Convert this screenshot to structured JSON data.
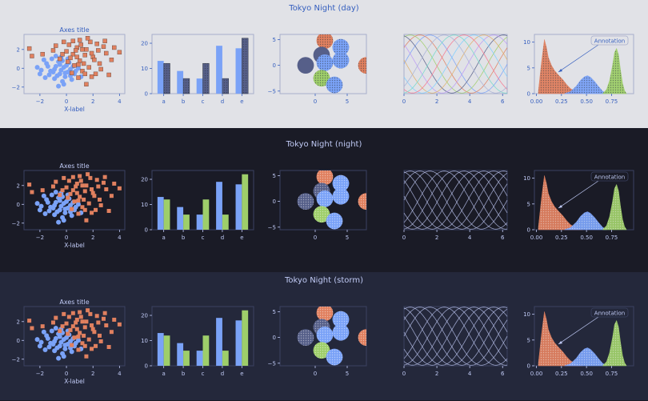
{
  "themes": [
    {
      "title": "Tokyo Night (day)",
      "bg": "#e1e2e7",
      "fg": "#3760bf",
      "border": "#a8aecb",
      "grid": "#c4c8da"
    },
    {
      "title": "Tokyo Night (night)",
      "bg": "#1a1b26",
      "fg": "#c0caf5",
      "border": "#3b4261",
      "grid": "#292e42"
    },
    {
      "title": "Tokyo Night (storm)",
      "bg": "#24283b",
      "fg": "#c0caf5",
      "border": "#3b4261",
      "grid": "#2f344d"
    }
  ],
  "colors": {
    "blue": "#7aa2f7",
    "orange": "#e0805f",
    "green": "#9ece6a",
    "gray": "#565f89",
    "day_hatch": "#2e3440"
  },
  "chart_data": [
    {
      "type": "scatter",
      "title": "Axes title",
      "xlabel": "X-label",
      "xticks": [
        "−2",
        "0",
        "2",
        "4"
      ],
      "yticks": [
        "2",
        "0",
        "−2"
      ],
      "xlim": [
        -3.2,
        4.4
      ],
      "ylim": [
        -2.7,
        3.6
      ],
      "series": [
        {
          "marker": "circle",
          "color": "blue",
          "points": [
            [
              -1.2,
              -0.3
            ],
            [
              -0.8,
              0.2
            ],
            [
              -0.5,
              -0.6
            ],
            [
              -0.2,
              0.1
            ],
            [
              0.1,
              -0.4
            ],
            [
              -1.5,
              0.5
            ],
            [
              -0.9,
              -1.1
            ],
            [
              -0.3,
              -1.4
            ],
            [
              0.3,
              -0.8
            ],
            [
              -0.6,
              0.7
            ],
            [
              -1.9,
              -0.2
            ],
            [
              0.5,
              0.2
            ],
            [
              -0.1,
              -0.9
            ],
            [
              -1.1,
              1.0
            ],
            [
              0.2,
              0.6
            ],
            [
              -0.4,
              -0.2
            ],
            [
              -0.7,
              -0.8
            ],
            [
              0.7,
              -0.3
            ],
            [
              -1.3,
              -0.7
            ],
            [
              0.0,
              0.3
            ],
            [
              -0.8,
              1.3
            ],
            [
              -2.2,
              0.1
            ],
            [
              0.4,
              -1.2
            ],
            [
              -0.2,
              -1.7
            ],
            [
              -1.6,
              -1.0
            ],
            [
              0.9,
              0.0
            ],
            [
              -0.5,
              0.4
            ],
            [
              -1.0,
              -0.4
            ],
            [
              0.1,
              1.0
            ],
            [
              -0.3,
              0.8
            ],
            [
              -1.7,
              0.9
            ],
            [
              0.6,
              -0.6
            ],
            [
              -0.9,
              -0.1
            ],
            [
              -0.1,
              -0.5
            ],
            [
              -1.4,
              0.2
            ],
            [
              0.3,
              -0.1
            ],
            [
              -0.6,
              -1.9
            ],
            [
              -2.0,
              -0.6
            ],
            [
              1.1,
              -0.9
            ],
            [
              -0.4,
              1.2
            ]
          ]
        },
        {
          "marker": "square",
          "color": "orange",
          "points": [
            [
              0.5,
              1.5
            ],
            [
              1.0,
              0.8
            ],
            [
              1.5,
              2.0
            ],
            [
              0.2,
              2.5
            ],
            [
              2.0,
              1.2
            ],
            [
              1.2,
              -0.3
            ],
            [
              0.8,
              2.2
            ],
            [
              2.5,
              0.5
            ],
            [
              1.8,
              2.8
            ],
            [
              0.0,
              1.8
            ],
            [
              -0.5,
              1.0
            ],
            [
              1.4,
              1.4
            ],
            [
              2.2,
              -0.6
            ],
            [
              0.6,
              0.3
            ],
            [
              3.0,
              1.6
            ],
            [
              1.0,
              3.0
            ],
            [
              -1.0,
              1.9
            ],
            [
              1.7,
              0.1
            ],
            [
              2.8,
              2.3
            ],
            [
              0.3,
              1.1
            ],
            [
              -2.6,
              1.3
            ],
            [
              0.9,
              -1.0
            ],
            [
              2.4,
              1.9
            ],
            [
              1.1,
              2.5
            ],
            [
              -0.2,
              2.8
            ],
            [
              1.9,
              -0.9
            ],
            [
              0.7,
              1.9
            ],
            [
              3.4,
              0.9
            ],
            [
              4.0,
              1.7
            ],
            [
              -2.8,
              2.1
            ],
            [
              1.3,
              0.5
            ],
            [
              2.6,
              -0.1
            ],
            [
              -0.8,
              2.4
            ],
            [
              0.4,
              -0.5
            ],
            [
              1.6,
              3.2
            ],
            [
              2.1,
              0.9
            ],
            [
              0.1,
              0.7
            ],
            [
              3.2,
              -0.7
            ],
            [
              1.5,
              -1.7
            ],
            [
              -1.8,
              1.5
            ],
            [
              2.9,
              2.9
            ],
            [
              0.8,
              1.2
            ],
            [
              1.9,
              1.6
            ],
            [
              1.2,
              2.0
            ],
            [
              0.5,
              2.9
            ],
            [
              2.3,
              2.6
            ],
            [
              -0.3,
              1.5
            ],
            [
              3.6,
              2.2
            ],
            [
              1.4,
              -0.6
            ],
            [
              0.9,
              0.4
            ]
          ]
        }
      ]
    },
    {
      "type": "bar",
      "categories": [
        "a",
        "b",
        "c",
        "d",
        "e"
      ],
      "yticks": [
        "0",
        "10",
        "20"
      ],
      "ylim": [
        0,
        23.5
      ],
      "series": [
        {
          "values": [
            13,
            9,
            6,
            19,
            18
          ],
          "color": "blue"
        },
        {
          "values": [
            12,
            6,
            12,
            6,
            22
          ],
          "color": "green"
        }
      ]
    },
    {
      "type": "scatter",
      "xticks": [
        "0",
        "5"
      ],
      "yticks": [
        "5",
        "0",
        "−5"
      ],
      "xlim": [
        -5.5,
        8
      ],
      "ylim": [
        -5.5,
        6
      ],
      "circles": [
        {
          "x": 1.5,
          "y": 4.8,
          "r": 1.3,
          "color": "orange"
        },
        {
          "x": 4.0,
          "y": 3.5,
          "r": 1.3,
          "color": "blue"
        },
        {
          "x": 1.0,
          "y": 2.0,
          "r": 1.3,
          "color": "gray"
        },
        {
          "x": 4.0,
          "y": 1.0,
          "r": 1.3,
          "color": "blue"
        },
        {
          "x": -1.5,
          "y": 0.0,
          "r": 1.3,
          "color": "gray"
        },
        {
          "x": 1.5,
          "y": 0.5,
          "r": 1.3,
          "color": "blue"
        },
        {
          "x": 8.0,
          "y": 0.0,
          "r": 1.3,
          "color": "orange"
        },
        {
          "x": 1.0,
          "y": -2.5,
          "r": 1.3,
          "color": "green"
        },
        {
          "x": 3.0,
          "y": -3.8,
          "r": 1.3,
          "color": "blue"
        }
      ]
    },
    {
      "type": "line",
      "xticks": [
        "0",
        "2",
        "4",
        "6"
      ],
      "xlim": [
        0,
        6.28
      ],
      "ylim": [
        -1.02,
        1.02
      ],
      "curve": "sin(x + phase)",
      "phases": [
        0,
        0.6,
        1.2,
        1.8,
        2.4,
        3.0,
        3.6,
        4.2,
        4.8,
        5.4
      ],
      "line_colors": [
        "#7aa2f7",
        "#e0805f",
        "#9ece6a",
        "#565f89",
        "#bb9af7",
        "#e0af68",
        "#7dcfff",
        "#f7768e",
        "#73daca",
        "#a9b1d6"
      ]
    },
    {
      "type": "area",
      "xticks": [
        "0.00",
        "0.25",
        "0.50",
        "0.75"
      ],
      "yticks": [
        "0",
        "5",
        "10"
      ],
      "xlim": [
        -0.02,
        0.97
      ],
      "ylim": [
        0,
        11.5
      ],
      "annotation": "Annotation",
      "annotation_point": [
        0.22,
        4.2
      ],
      "series": [
        {
          "color": "orange",
          "x": [
            0.02,
            0.05,
            0.08,
            0.1,
            0.12,
            0.15,
            0.18,
            0.22,
            0.26,
            0.3,
            0.34,
            0.38,
            0.42,
            0.46
          ],
          "y": [
            0.5,
            6,
            10.5,
            9,
            7,
            5.5,
            4.5,
            3.6,
            2.8,
            1.8,
            1.0,
            0.5,
            0.2,
            0.0
          ]
        },
        {
          "color": "blue",
          "x": [
            0.28,
            0.34,
            0.4,
            0.44,
            0.48,
            0.51,
            0.54,
            0.58,
            0.62,
            0.66,
            0.7
          ],
          "y": [
            0.0,
            0.4,
            1.5,
            2.6,
            3.3,
            3.5,
            3.2,
            2.4,
            1.4,
            0.5,
            0.0
          ]
        },
        {
          "color": "green",
          "x": [
            0.66,
            0.7,
            0.73,
            0.76,
            0.78,
            0.8,
            0.82,
            0.84,
            0.86,
            0.88,
            0.9
          ],
          "y": [
            0.0,
            0.8,
            2.5,
            5.5,
            8.0,
            8.8,
            7.5,
            4.5,
            2.0,
            0.6,
            0.0
          ]
        }
      ]
    }
  ]
}
